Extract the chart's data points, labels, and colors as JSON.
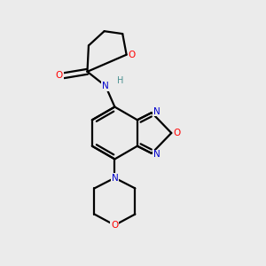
{
  "background_color": "#ebebeb",
  "bond_color": "#000000",
  "atom_colors": {
    "O": "#ff0000",
    "N": "#0000cc",
    "H": "#4a9090",
    "C": "#000000"
  },
  "lw": 1.6
}
